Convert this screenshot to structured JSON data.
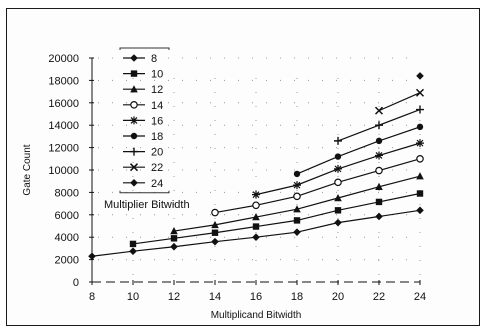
{
  "chart_data": {
    "type": "line",
    "title": "",
    "xlabel": "Multiplicand Bitwidth",
    "ylabel": "Gate Count",
    "xlim": [
      8,
      24
    ],
    "ylim": [
      0,
      20000
    ],
    "x_ticks": [
      "8",
      "10",
      "12",
      "14",
      "16",
      "18",
      "20",
      "22",
      "24"
    ],
    "y_ticks": [
      "0",
      "2000",
      "4000",
      "6000",
      "8000",
      "10000",
      "12000",
      "14000",
      "16000",
      "18000",
      "20000"
    ],
    "grid": "dotted",
    "legend_title": "Multiplier Bitwidth",
    "legend_position": "top-left",
    "series": [
      {
        "name": "8",
        "marker": "diamond",
        "x": [
          8,
          10,
          12,
          14,
          16,
          18,
          20,
          22,
          24
        ],
        "values": [
          2300,
          2750,
          3150,
          3600,
          4000,
          4450,
          5300,
          5850,
          6400
        ]
      },
      {
        "name": "10",
        "marker": "square",
        "x": [
          10,
          12,
          14,
          16,
          18,
          20,
          22,
          24
        ],
        "values": [
          3400,
          3900,
          4400,
          4950,
          5500,
          6400,
          7150,
          7900
        ]
      },
      {
        "name": "12",
        "marker": "triangle",
        "x": [
          12,
          14,
          16,
          18,
          20,
          22,
          24
        ],
        "values": [
          4550,
          5100,
          5800,
          6500,
          7500,
          8500,
          9450
        ]
      },
      {
        "name": "14",
        "marker": "circle-open",
        "x": [
          14,
          16,
          18,
          20,
          22,
          24
        ],
        "values": [
          6200,
          6850,
          7650,
          8900,
          9950,
          11000
        ]
      },
      {
        "name": "16",
        "marker": "star",
        "x": [
          16,
          18,
          20,
          22,
          24
        ],
        "values": [
          7800,
          8650,
          10100,
          11300,
          12400
        ]
      },
      {
        "name": "18",
        "marker": "circle",
        "x": [
          18,
          20,
          22,
          24
        ],
        "values": [
          9650,
          11200,
          12600,
          13850
        ]
      },
      {
        "name": "20",
        "marker": "plus",
        "x": [
          20,
          22,
          24
        ],
        "values": [
          12600,
          14000,
          15400
        ]
      },
      {
        "name": "22",
        "marker": "x",
        "x": [
          22,
          24
        ],
        "values": [
          15300,
          16900
        ]
      },
      {
        "name": "24",
        "marker": "diamond",
        "x": [
          24
        ],
        "values": [
          18400
        ]
      }
    ]
  }
}
